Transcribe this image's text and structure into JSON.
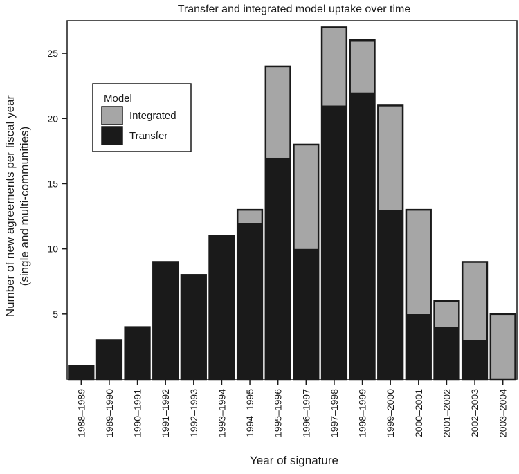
{
  "chart_data": {
    "type": "bar",
    "stacked": true,
    "title": "Transfer and integrated model uptake over time",
    "xlabel": "Year of signature",
    "ylabel": "Number of new agreements per fiscal year",
    "ylabel2": "(single and multi-communities)",
    "ylim": [
      0,
      27.5
    ],
    "yticks": [
      5,
      10,
      15,
      20,
      25
    ],
    "grid": false,
    "legend": {
      "title": "Model",
      "placement": "top-left",
      "items": [
        {
          "label": "Integrated",
          "color": "#a6a6a6"
        },
        {
          "label": "Transfer",
          "color": "#1a1a1a"
        }
      ]
    },
    "categories": [
      "1988–1989",
      "1989–1990",
      "1990–1991",
      "1991–1992",
      "1992–1993",
      "1993–1994",
      "1994–1995",
      "1995–1996",
      "1996–1997",
      "1997–1998",
      "1998–1999",
      "1999–2000",
      "2000–2001",
      "2001–2002",
      "2002–2003",
      "2003–2004"
    ],
    "series": [
      {
        "name": "Transfer",
        "color": "#1a1a1a",
        "values": [
          1,
          3,
          4,
          9,
          8,
          11,
          12,
          17,
          10,
          21,
          22,
          13,
          5,
          4,
          3,
          0
        ]
      },
      {
        "name": "Integrated",
        "color": "#a6a6a6",
        "values": [
          0,
          0,
          0,
          0,
          0,
          0,
          1,
          7,
          8,
          6,
          4,
          8,
          8,
          2,
          6,
          5
        ]
      }
    ]
  }
}
